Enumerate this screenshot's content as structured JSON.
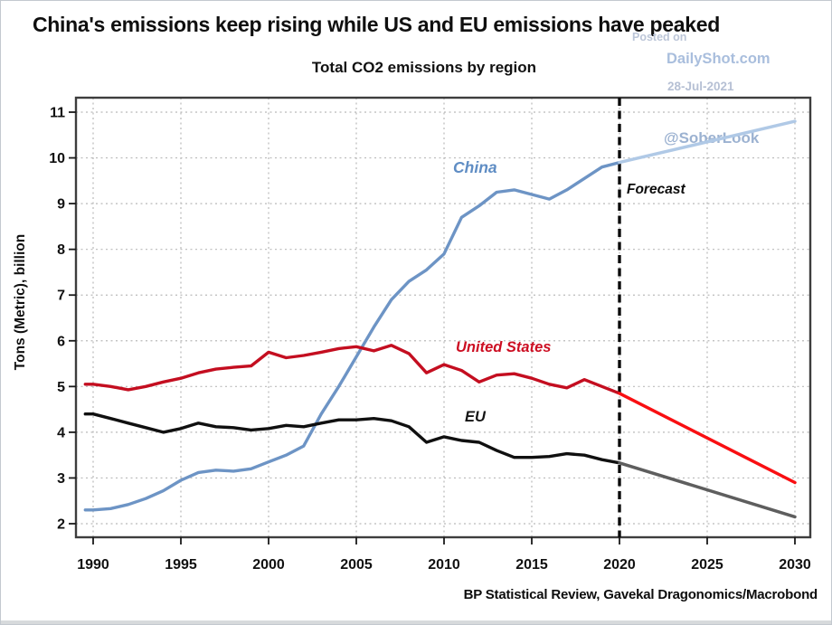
{
  "page": {
    "title": "China's emissions keep rising while US and EU emissions have peaked",
    "source": "BP Statistical Review, Gavekal Dragonomics/Macrobond",
    "watermark": {
      "posted_on": "Posted on",
      "site": "DailyShot.com",
      "date": "28-Jul-2021",
      "handle": "@SoberLook"
    }
  },
  "chart_data": {
    "type": "line",
    "title": "Total CO2 emissions by region",
    "ylabel": "Tons (Metric), billion",
    "ylim": [
      2,
      11
    ],
    "xlim": [
      1990,
      2030
    ],
    "grid": true,
    "legend_position": "inline-labels",
    "x_ticks": [
      1990,
      1995,
      2000,
      2005,
      2010,
      2015,
      2020,
      2025,
      2030
    ],
    "y_ticks": [
      2,
      3,
      4,
      5,
      6,
      7,
      8,
      9,
      10,
      11
    ],
    "forecast": {
      "divider_year": 2020,
      "label": "Forecast"
    },
    "years": [
      1990,
      1991,
      1992,
      1993,
      1994,
      1995,
      1996,
      1997,
      1998,
      1999,
      2000,
      2001,
      2002,
      2003,
      2004,
      2005,
      2006,
      2007,
      2008,
      2009,
      2010,
      2011,
      2012,
      2013,
      2014,
      2015,
      2016,
      2017,
      2018,
      2019,
      2020
    ],
    "series": [
      {
        "name": "China",
        "color": "#6d94c5",
        "forecast_color": "#b0c9e6",
        "label_color": "#5f8dc4",
        "values": [
          2.3,
          2.33,
          2.42,
          2.55,
          2.72,
          2.95,
          3.12,
          3.17,
          3.15,
          3.2,
          3.35,
          3.5,
          3.7,
          4.4,
          5.0,
          5.65,
          6.3,
          6.9,
          7.3,
          7.55,
          7.9,
          8.7,
          8.95,
          9.25,
          9.3,
          9.2,
          9.1,
          9.3,
          9.55,
          9.8,
          9.9
        ],
        "forecast_years": [
          2020,
          2030
        ],
        "forecast_values": [
          9.9,
          10.8
        ]
      },
      {
        "name": "United States",
        "color": "#c40e20",
        "forecast_color": "#f90f12",
        "label_color": "#cc0e22",
        "values": [
          5.05,
          5.0,
          4.93,
          5.0,
          5.1,
          5.18,
          5.3,
          5.38,
          5.42,
          5.45,
          5.75,
          5.63,
          5.68,
          5.75,
          5.83,
          5.87,
          5.78,
          5.9,
          5.72,
          5.3,
          5.48,
          5.35,
          5.1,
          5.25,
          5.28,
          5.18,
          5.05,
          4.97,
          5.15,
          5.0,
          4.85
        ],
        "forecast_years": [
          2020,
          2030
        ],
        "forecast_values": [
          4.85,
          2.9
        ]
      },
      {
        "name": "EU",
        "color": "#101010",
        "forecast_color": "#5e5e5e",
        "label_color": "#141414",
        "values": [
          4.4,
          4.3,
          4.2,
          4.1,
          4.0,
          4.08,
          4.2,
          4.12,
          4.1,
          4.05,
          4.08,
          4.15,
          4.12,
          4.2,
          4.27,
          4.27,
          4.3,
          4.25,
          4.12,
          3.78,
          3.9,
          3.82,
          3.78,
          3.6,
          3.45,
          3.45,
          3.47,
          3.53,
          3.5,
          3.4,
          3.33
        ],
        "forecast_years": [
          2020,
          2030
        ],
        "forecast_values": [
          3.33,
          2.15
        ]
      }
    ],
    "style": {
      "grid_color": "#b9b9b9",
      "frame_color": "#3d3d3d",
      "tick_color": "#1a1a1a",
      "divider_color": "#0a0a0a",
      "tick_label_color": "#111111",
      "watermark_handle_color": "#9cb2d1"
    }
  }
}
